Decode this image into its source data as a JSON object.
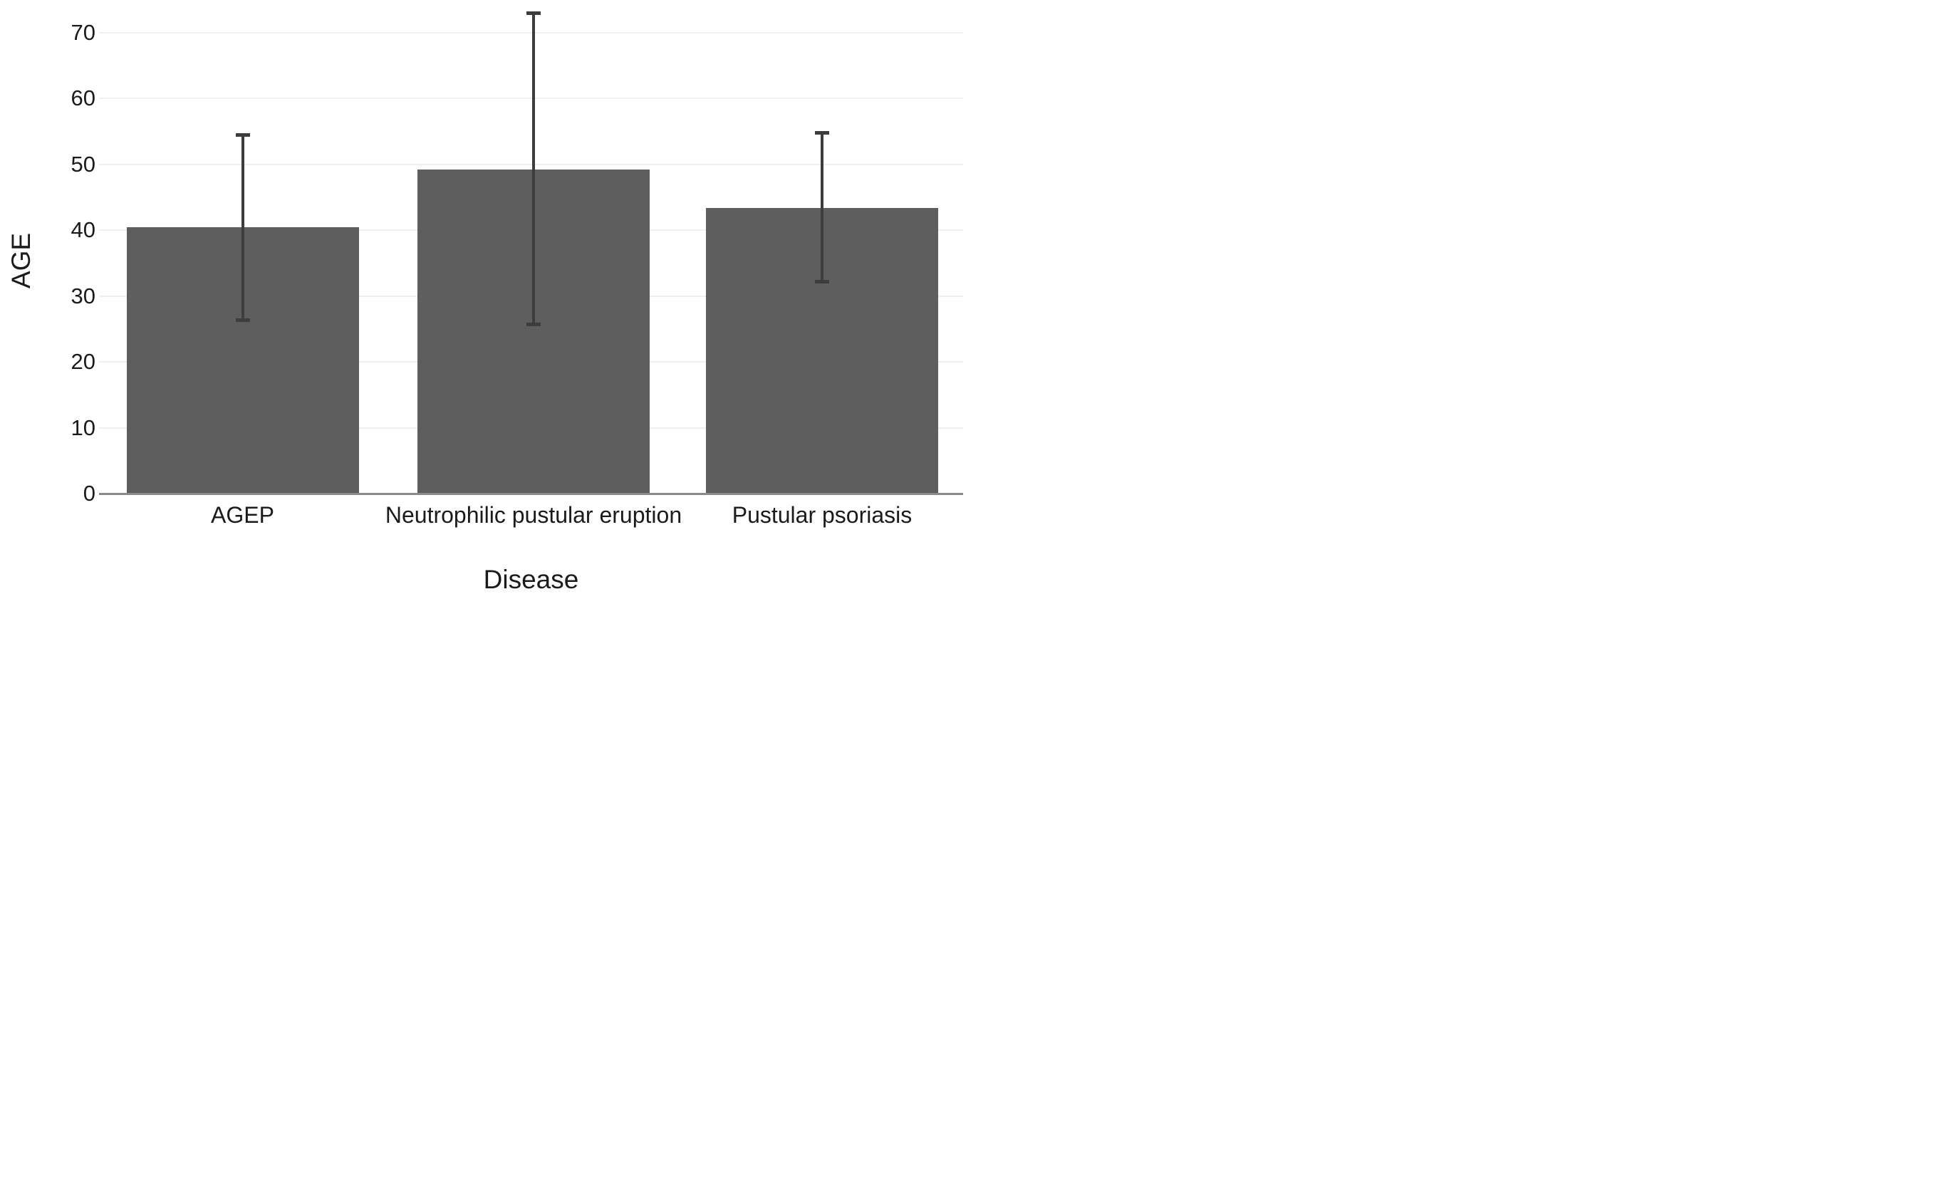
{
  "chart_data": {
    "type": "bar",
    "title": "",
    "xlabel": "Disease",
    "ylabel": "AGE",
    "categories": [
      "AGEP",
      "Neutrophilic pustular eruption",
      "Pustular psoriasis"
    ],
    "values": [
      40.4,
      49.2,
      43.4
    ],
    "error_bars": {
      "upper": [
        54.4,
        72.9,
        54.8
      ],
      "lower": [
        26.3,
        25.7,
        32.2
      ]
    },
    "yticks": [
      0,
      10,
      20,
      30,
      40,
      50,
      60,
      70
    ],
    "ylim": [
      0,
      75
    ],
    "grid": "horizontal-light",
    "legend": "none",
    "bar_color": "#5e5e5e",
    "error_bar_color": "#3d3d3d",
    "axis_line_color": "#8a8a8a",
    "gridline_color": "#f0efef",
    "text_color": "#1b1b1b",
    "background_color": "#ffffff"
  }
}
